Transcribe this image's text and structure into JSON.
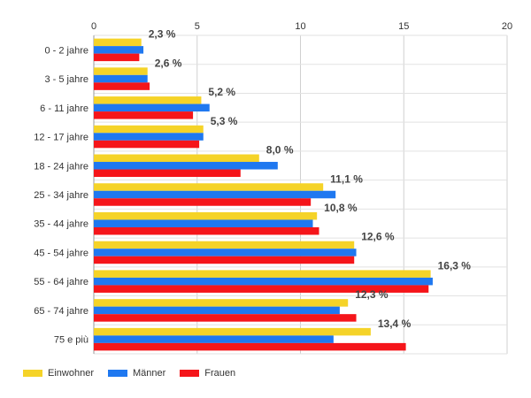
{
  "chart_data": {
    "type": "bar",
    "orientation": "horizontal",
    "categories": [
      "0 - 2 jahre",
      "3 - 5 jahre",
      "6 - 11 jahre",
      "12 - 17 jahre",
      "18 - 24 jahre",
      "25 - 34 jahre",
      "35 - 44 jahre",
      "45 - 54 jahre",
      "55 - 64 jahre",
      "65 - 74 jahre",
      "75 e più"
    ],
    "series": [
      {
        "name": "Einwohner",
        "color": "#f5d328",
        "values": [
          2.3,
          2.6,
          5.2,
          5.3,
          8.0,
          11.1,
          10.8,
          12.6,
          16.3,
          12.3,
          13.4
        ]
      },
      {
        "name": "Männer",
        "color": "#1f78f0",
        "values": [
          2.4,
          2.6,
          5.6,
          5.3,
          8.9,
          11.7,
          10.6,
          12.7,
          16.4,
          11.9,
          11.6
        ]
      },
      {
        "name": "Frauen",
        "color": "#f5151a",
        "values": [
          2.2,
          2.7,
          4.8,
          5.1,
          7.1,
          10.5,
          10.9,
          12.6,
          16.2,
          12.7,
          15.1
        ]
      }
    ],
    "data_labels": [
      "2,3 %",
      "2,6 %",
      "5,2 %",
      "5,3 %",
      "8,0 %",
      "11,1 %",
      "10,8 %",
      "12,6 %",
      "16,3 %",
      "12,3 %",
      "13,4 %"
    ],
    "x_ticks": [
      0,
      5,
      10,
      15,
      20
    ],
    "xlim": [
      0,
      20
    ],
    "axis_position": "top",
    "grid": true,
    "legend_position": "bottom-left"
  }
}
